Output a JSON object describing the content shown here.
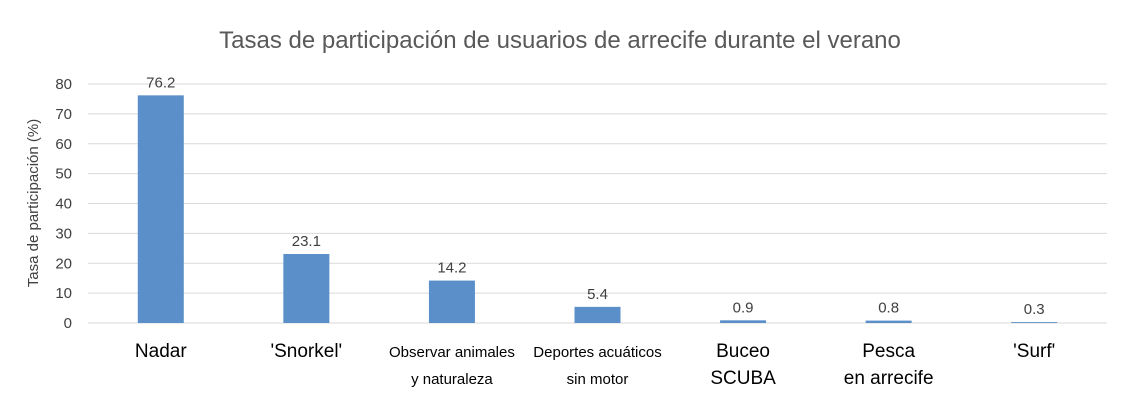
{
  "chart_data": {
    "type": "bar",
    "title": "Tasas de participación de usuarios de arrecife durante el verano",
    "ylabel": "Tasa de participación (%)",
    "xlabel": "",
    "ylim": [
      0,
      80
    ],
    "yticks": [
      0,
      10,
      20,
      30,
      40,
      50,
      60,
      70,
      80
    ],
    "grid": true,
    "legend": "none",
    "bar_color": "#5b8fc9",
    "categories": [
      [
        "Nadar"
      ],
      [
        "'Snorkel'"
      ],
      [
        "Observar animales",
        "y naturaleza"
      ],
      [
        "Deportes acuáticos",
        "sin motor"
      ],
      [
        "Buceo",
        "SCUBA"
      ],
      [
        "Pesca",
        "en arrecife"
      ],
      [
        "'Surf'"
      ]
    ],
    "values": [
      76.2,
      23.1,
      14.2,
      5.4,
      0.9,
      0.8,
      0.3
    ],
    "data_labels": [
      "76.2",
      "23.1",
      "14.2",
      "5.4",
      "0.9",
      "0.8",
      "0.3"
    ]
  }
}
